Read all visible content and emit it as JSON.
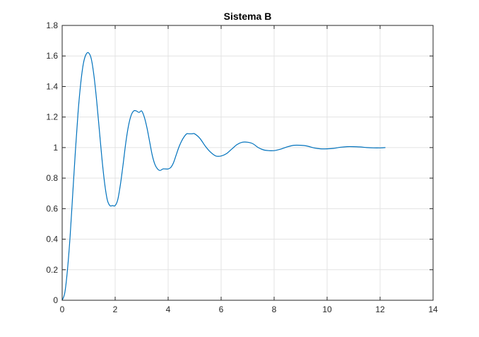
{
  "chart_data": {
    "type": "line",
    "title": "Sistema B",
    "xlabel": "",
    "ylabel": "",
    "xlim": [
      0,
      14
    ],
    "ylim": [
      0,
      1.8
    ],
    "xticks": [
      0,
      2,
      4,
      6,
      8,
      10,
      12,
      14
    ],
    "yticks": [
      0,
      0.2,
      0.4,
      0.6,
      0.8,
      1,
      1.2,
      1.4,
      1.6,
      1.8
    ],
    "grid": true,
    "legend": "none",
    "series": [
      {
        "color": "#0072BD",
        "x": [
          0,
          0.1,
          0.2,
          0.3,
          0.4,
          0.5,
          0.6,
          0.7,
          0.8,
          0.9,
          1.0,
          1.1,
          1.2,
          1.3,
          1.4,
          1.5,
          1.6,
          1.7,
          1.8,
          1.9,
          2.0,
          2.1,
          2.2,
          2.3,
          2.4,
          2.5,
          2.6,
          2.7,
          2.8,
          2.9,
          3.0,
          3.1,
          3.2,
          3.3,
          3.4,
          3.5,
          3.6,
          3.7,
          3.8,
          3.9,
          4.0,
          4.1,
          4.2,
          4.3,
          4.4,
          4.5,
          4.6,
          4.7,
          4.8,
          4.9,
          5.0,
          5.2,
          5.4,
          5.6,
          5.8,
          6.0,
          6.2,
          6.4,
          6.6,
          6.8,
          7.0,
          7.2,
          7.4,
          7.6,
          7.8,
          8.0,
          8.25,
          8.5,
          8.75,
          9.0,
          9.25,
          9.5,
          9.75,
          10.0,
          10.25,
          10.5,
          10.75,
          11.0,
          11.25,
          11.5,
          11.75,
          12.0,
          12.2
        ],
        "y": [
          0,
          0.05,
          0.2,
          0.42,
          0.7,
          0.98,
          1.23,
          1.42,
          1.55,
          1.61,
          1.62,
          1.58,
          1.47,
          1.31,
          1.12,
          0.93,
          0.77,
          0.66,
          0.62,
          0.62,
          0.62,
          0.66,
          0.76,
          0.89,
          1.03,
          1.14,
          1.21,
          1.24,
          1.24,
          1.23,
          1.24,
          1.2,
          1.13,
          1.04,
          0.95,
          0.89,
          0.86,
          0.85,
          0.86,
          0.86,
          0.86,
          0.87,
          0.9,
          0.95,
          1.0,
          1.04,
          1.07,
          1.09,
          1.09,
          1.09,
          1.09,
          1.06,
          1.01,
          0.97,
          0.945,
          0.945,
          0.96,
          0.99,
          1.02,
          1.035,
          1.035,
          1.025,
          1.0,
          0.985,
          0.98,
          0.98,
          0.99,
          1.005,
          1.015,
          1.015,
          1.01,
          0.998,
          0.992,
          0.992,
          0.995,
          1.002,
          1.006,
          1.006,
          1.004,
          1.0,
          0.998,
          0.998,
          1.0
        ]
      }
    ]
  }
}
